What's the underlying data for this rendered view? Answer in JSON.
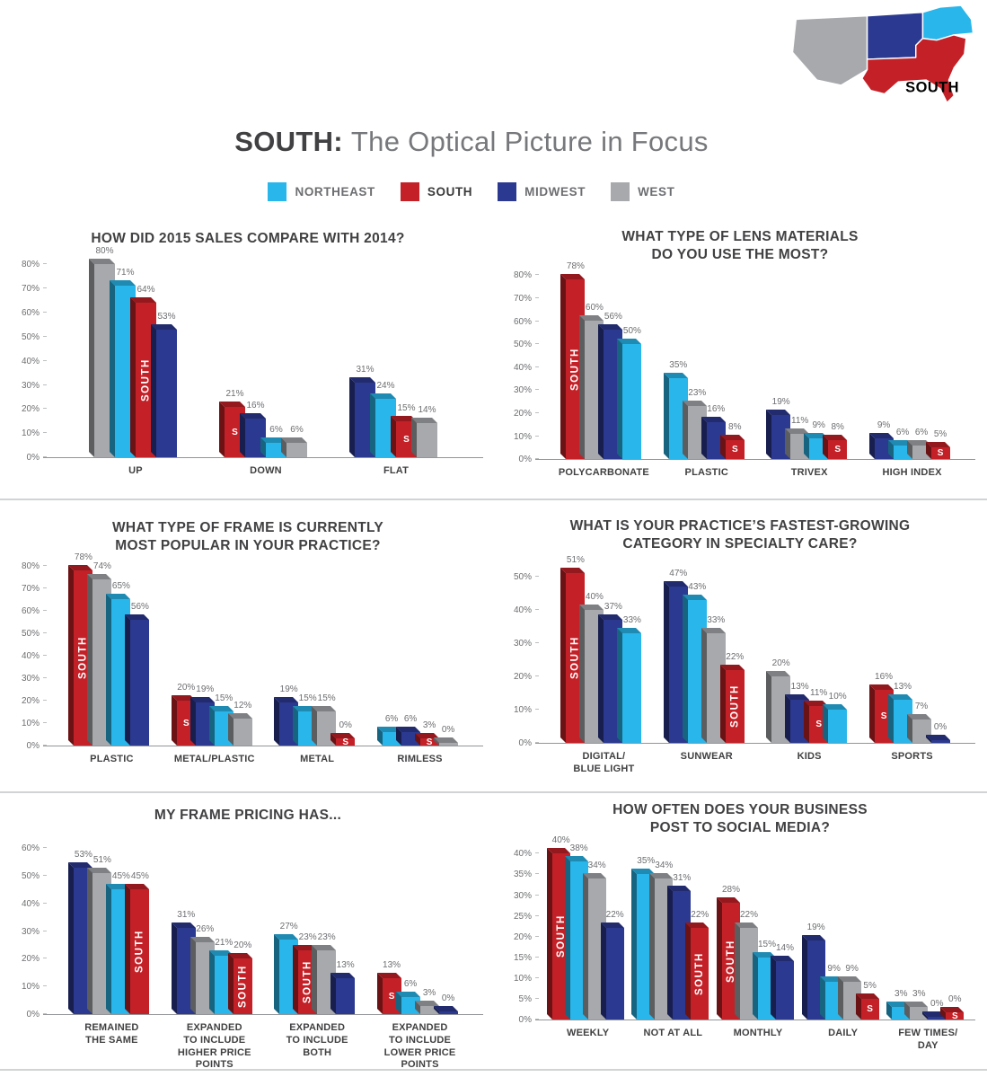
{
  "page": {
    "title_bold": "SOUTH:",
    "title_rest": "The Optical Picture in Focus"
  },
  "regions": {
    "NORTHEAST": "#29b6ea",
    "SOUTH": "#c32127",
    "MIDWEST": "#2b3990",
    "WEST": "#a7a9ac"
  },
  "legend": {
    "items": [
      {
        "region": "NORTHEAST",
        "label": "NORTHEAST"
      },
      {
        "region": "SOUTH",
        "label": "SOUTH"
      },
      {
        "region": "MIDWEST",
        "label": "MIDWEST"
      },
      {
        "region": "WEST",
        "label": "WEST"
      }
    ]
  },
  "map": {
    "label": "SOUTH"
  },
  "chart_data": [
    {
      "type": "bar",
      "title": "HOW DID 2015 SALES COMPARE WITH 2014?",
      "ymax": 80,
      "ytick_step": 10,
      "yunit": "%",
      "grid": false,
      "groups": [
        {
          "label": "UP",
          "bars": [
            {
              "region": "WEST",
              "value": 80
            },
            {
              "region": "NORTHEAST",
              "value": 71
            },
            {
              "region": "SOUTH",
              "value": 64,
              "tag": "SOUTH"
            },
            {
              "region": "MIDWEST",
              "value": 53
            }
          ]
        },
        {
          "label": "DOWN",
          "bars": [
            {
              "region": "SOUTH",
              "value": 21,
              "tag": "S"
            },
            {
              "region": "MIDWEST",
              "value": 16
            },
            {
              "region": "NORTHEAST",
              "value": 6
            },
            {
              "region": "WEST",
              "value": 6
            }
          ]
        },
        {
          "label": "FLAT",
          "bars": [
            {
              "region": "MIDWEST",
              "value": 31
            },
            {
              "region": "NORTHEAST",
              "value": 24
            },
            {
              "region": "SOUTH",
              "value": 15,
              "tag": "S"
            },
            {
              "region": "WEST",
              "value": 14
            }
          ]
        }
      ]
    },
    {
      "type": "bar",
      "title": "WHAT TYPE OF LENS MATERIALS\nDO YOU USE THE MOST?",
      "ymax": 80,
      "ytick_step": 10,
      "yunit": "%",
      "grid": false,
      "groups": [
        {
          "label": "POLYCARBONATE",
          "bars": [
            {
              "region": "SOUTH",
              "value": 78,
              "tag": "SOUTH"
            },
            {
              "region": "WEST",
              "value": 60
            },
            {
              "region": "MIDWEST",
              "value": 56
            },
            {
              "region": "NORTHEAST",
              "value": 50
            }
          ]
        },
        {
          "label": "PLASTIC",
          "bars": [
            {
              "region": "NORTHEAST",
              "value": 35
            },
            {
              "region": "WEST",
              "value": 23
            },
            {
              "region": "MIDWEST",
              "value": 16
            },
            {
              "region": "SOUTH",
              "value": 8,
              "tag": "S"
            }
          ]
        },
        {
          "label": "TRIVEX",
          "bars": [
            {
              "region": "MIDWEST",
              "value": 19
            },
            {
              "region": "WEST",
              "value": 11
            },
            {
              "region": "NORTHEAST",
              "value": 9
            },
            {
              "region": "SOUTH",
              "value": 8,
              "tag": "S"
            }
          ]
        },
        {
          "label": "HIGH INDEX",
          "bars": [
            {
              "region": "MIDWEST",
              "value": 9
            },
            {
              "region": "NORTHEAST",
              "value": 6
            },
            {
              "region": "WEST",
              "value": 6
            },
            {
              "region": "SOUTH",
              "value": 5,
              "tag": "S"
            }
          ]
        }
      ]
    },
    {
      "type": "bar",
      "title": "WHAT TYPE OF FRAME IS CURRENTLY\nMOST POPULAR IN YOUR PRACTICE?",
      "ymax": 80,
      "ytick_step": 10,
      "yunit": "%",
      "grid": false,
      "groups": [
        {
          "label": "PLASTIC",
          "bars": [
            {
              "region": "SOUTH",
              "value": 78,
              "tag": "SOUTH"
            },
            {
              "region": "WEST",
              "value": 74
            },
            {
              "region": "NORTHEAST",
              "value": 65
            },
            {
              "region": "MIDWEST",
              "value": 56
            }
          ]
        },
        {
          "label": "METAL/PLASTIC",
          "bars": [
            {
              "region": "SOUTH",
              "value": 20,
              "tag": "S"
            },
            {
              "region": "MIDWEST",
              "value": 19
            },
            {
              "region": "NORTHEAST",
              "value": 15
            },
            {
              "region": "WEST",
              "value": 12
            }
          ]
        },
        {
          "label": "METAL",
          "bars": [
            {
              "region": "MIDWEST",
              "value": 19
            },
            {
              "region": "NORTHEAST",
              "value": 15
            },
            {
              "region": "WEST",
              "value": 15
            },
            {
              "region": "SOUTH",
              "value": 0,
              "tag": "S"
            }
          ]
        },
        {
          "label": "RIMLESS",
          "bars": [
            {
              "region": "NORTHEAST",
              "value": 6
            },
            {
              "region": "MIDWEST",
              "value": 6
            },
            {
              "region": "SOUTH",
              "value": 3,
              "tag": "S"
            },
            {
              "region": "WEST",
              "value": 0
            }
          ]
        }
      ]
    },
    {
      "type": "bar",
      "title": "WHAT IS YOUR PRACTICE’S FASTEST-GROWING\nCATEGORY IN SPECIALTY CARE?",
      "ymax": 50,
      "ytick_step": 10,
      "yunit": "%",
      "grid": false,
      "groups": [
        {
          "label": "DIGITAL/\nBLUE LIGHT",
          "bars": [
            {
              "region": "SOUTH",
              "value": 51,
              "tag": "SOUTH"
            },
            {
              "region": "WEST",
              "value": 40
            },
            {
              "region": "MIDWEST",
              "value": 37
            },
            {
              "region": "NORTHEAST",
              "value": 33
            }
          ]
        },
        {
          "label": "SUNWEAR",
          "bars": [
            {
              "region": "MIDWEST",
              "value": 47
            },
            {
              "region": "NORTHEAST",
              "value": 43
            },
            {
              "region": "WEST",
              "value": 33
            },
            {
              "region": "SOUTH",
              "value": 22,
              "tag": "SOUTH"
            }
          ]
        },
        {
          "label": "KIDS",
          "bars": [
            {
              "region": "WEST",
              "value": 20
            },
            {
              "region": "MIDWEST",
              "value": 13
            },
            {
              "region": "SOUTH",
              "value": 11,
              "tag": "S"
            },
            {
              "region": "NORTHEAST",
              "value": 10
            }
          ]
        },
        {
          "label": "SPORTS",
          "bars": [
            {
              "region": "SOUTH",
              "value": 16,
              "tag": "S"
            },
            {
              "region": "NORTHEAST",
              "value": 13
            },
            {
              "region": "WEST",
              "value": 7
            },
            {
              "region": "MIDWEST",
              "value": 0
            }
          ]
        }
      ]
    },
    {
      "type": "bar",
      "title": "MY FRAME PRICING HAS...",
      "ymax": 60,
      "ytick_step": 10,
      "yunit": "%",
      "grid": false,
      "groups": [
        {
          "label": "REMAINED\nTHE SAME",
          "bars": [
            {
              "region": "MIDWEST",
              "value": 53
            },
            {
              "region": "WEST",
              "value": 51
            },
            {
              "region": "NORTHEAST",
              "value": 45
            },
            {
              "region": "SOUTH",
              "value": 45,
              "tag": "SOUTH"
            }
          ]
        },
        {
          "label": "EXPANDED\nTO INCLUDE\nHIGHER PRICE\nPOINTS",
          "bars": [
            {
              "region": "MIDWEST",
              "value": 31
            },
            {
              "region": "WEST",
              "value": 26
            },
            {
              "region": "NORTHEAST",
              "value": 21
            },
            {
              "region": "SOUTH",
              "value": 20,
              "tag": "SOUTH"
            }
          ]
        },
        {
          "label": "EXPANDED\nTO INCLUDE\nBOTH",
          "bars": [
            {
              "region": "NORTHEAST",
              "value": 27
            },
            {
              "region": "SOUTH",
              "value": 23,
              "tag": "SOUTH"
            },
            {
              "region": "WEST",
              "value": 23
            },
            {
              "region": "MIDWEST",
              "value": 13
            }
          ]
        },
        {
          "label": "EXPANDED\nTO INCLUDE\nLOWER PRICE\nPOINTS",
          "bars": [
            {
              "region": "SOUTH",
              "value": 13,
              "tag": "S"
            },
            {
              "region": "NORTHEAST",
              "value": 6
            },
            {
              "region": "WEST",
              "value": 3
            },
            {
              "region": "MIDWEST",
              "value": 0
            }
          ]
        }
      ]
    },
    {
      "type": "bar",
      "title": "HOW OFTEN DOES YOUR BUSINESS\nPOST TO SOCIAL MEDIA?",
      "ymax": 40,
      "ytick_step": 5,
      "yunit": "%",
      "grid": false,
      "groups": [
        {
          "label": "WEEKLY",
          "bars": [
            {
              "region": "SOUTH",
              "value": 40,
              "tag": "SOUTH"
            },
            {
              "region": "NORTHEAST",
              "value": 38
            },
            {
              "region": "WEST",
              "value": 34
            },
            {
              "region": "MIDWEST",
              "value": 22
            }
          ]
        },
        {
          "label": "NOT AT ALL",
          "bars": [
            {
              "region": "NORTHEAST",
              "value": 35
            },
            {
              "region": "WEST",
              "value": 34
            },
            {
              "region": "MIDWEST",
              "value": 31
            },
            {
              "region": "SOUTH",
              "value": 22,
              "tag": "SOUTH"
            }
          ]
        },
        {
          "label": "MONTHLY",
          "bars": [
            {
              "region": "SOUTH",
              "value": 28,
              "tag": "SOUTH"
            },
            {
              "region": "WEST",
              "value": 22
            },
            {
              "region": "NORTHEAST",
              "value": 15
            },
            {
              "region": "MIDWEST",
              "value": 14
            }
          ]
        },
        {
          "label": "DAILY",
          "bars": [
            {
              "region": "MIDWEST",
              "value": 19
            },
            {
              "region": "NORTHEAST",
              "value": 9
            },
            {
              "region": "WEST",
              "value": 9
            },
            {
              "region": "SOUTH",
              "value": 5,
              "tag": "S"
            }
          ]
        },
        {
          "label": "FEW TIMES/\nDAY",
          "bars": [
            {
              "region": "NORTHEAST",
              "value": 3
            },
            {
              "region": "WEST",
              "value": 3
            },
            {
              "region": "MIDWEST",
              "value": 0
            },
            {
              "region": "SOUTH",
              "value": 0,
              "tag": "S"
            }
          ]
        }
      ]
    }
  ]
}
